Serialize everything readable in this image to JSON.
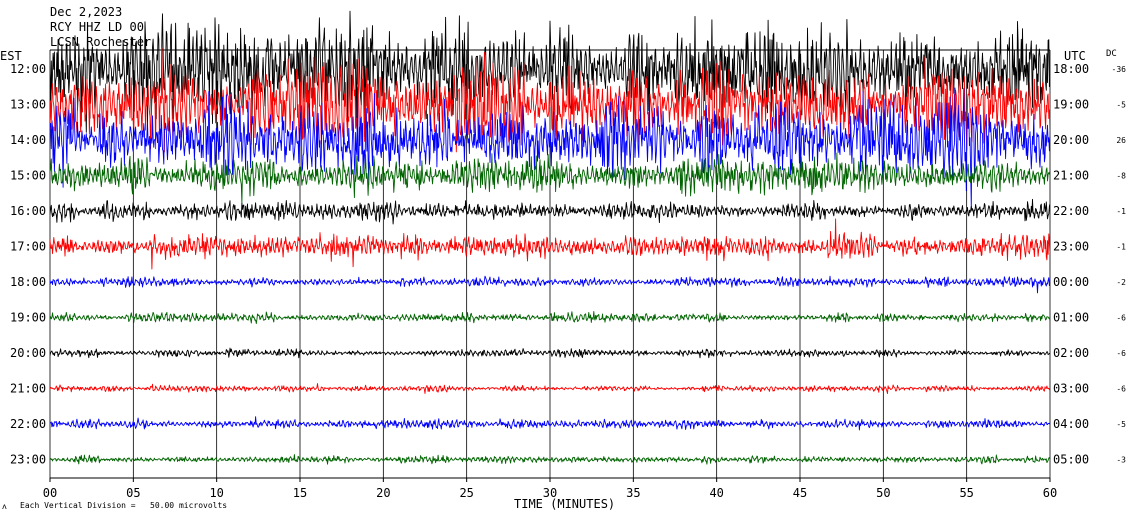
{
  "header": {
    "date": "Dec 2,2023",
    "channel": "RCY HHZ LD 00",
    "location": "LCSN Rochester"
  },
  "chart_data": {
    "type": "line",
    "left_axis_label": "EST",
    "right_axis_label": "UTC",
    "dc_label": "DC",
    "xlabel": "TIME (MINUTES)",
    "xlim": [
      0,
      60
    ],
    "x_ticks": [
      "00",
      "05",
      "10",
      "15",
      "20",
      "25",
      "30",
      "35",
      "40",
      "45",
      "50",
      "55",
      "60"
    ],
    "scale_note": "Each Vertical Division =   50.00 microvolts",
    "trace_colors": [
      "#000000",
      "#ff0000",
      "#0000ff",
      "#006400"
    ],
    "rows": [
      {
        "est": "12:00",
        "utc": "18:00",
        "dc": "-36",
        "color": "#000000",
        "amplitude": 60
      },
      {
        "est": "13:00",
        "utc": "19:00",
        "dc": "-5",
        "color": "#ff0000",
        "amplitude": 55
      },
      {
        "est": "14:00",
        "utc": "20:00",
        "dc": "26",
        "color": "#0000ff",
        "amplitude": 50
      },
      {
        "est": "15:00",
        "utc": "21:00",
        "dc": "-8",
        "color": "#006400",
        "amplitude": 22
      },
      {
        "est": "16:00",
        "utc": "22:00",
        "dc": "-1",
        "color": "#000000",
        "amplitude": 12
      },
      {
        "est": "17:00",
        "utc": "23:00",
        "dc": "-1",
        "color": "#ff0000",
        "amplitude": 16
      },
      {
        "est": "18:00",
        "utc": "00:00",
        "dc": "-2",
        "color": "#0000ff",
        "amplitude": 6
      },
      {
        "est": "19:00",
        "utc": "01:00",
        "dc": "-6",
        "color": "#006400",
        "amplitude": 6
      },
      {
        "est": "20:00",
        "utc": "02:00",
        "dc": "-6",
        "color": "#000000",
        "amplitude": 5
      },
      {
        "est": "21:00",
        "utc": "03:00",
        "dc": "-6",
        "color": "#ff0000",
        "amplitude": 4
      },
      {
        "est": "22:00",
        "utc": "04:00",
        "dc": "-5",
        "color": "#0000ff",
        "amplitude": 6
      },
      {
        "est": "23:00",
        "utc": "05:00",
        "dc": "-3",
        "color": "#006400",
        "amplitude": 5
      }
    ]
  }
}
